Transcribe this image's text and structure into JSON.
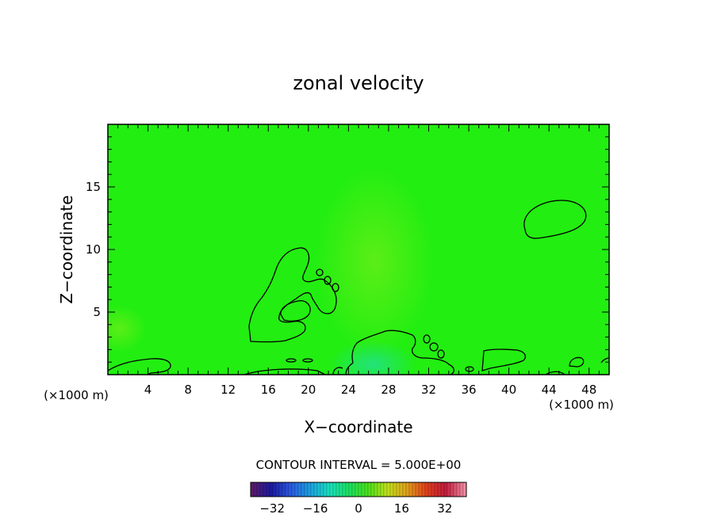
{
  "chart_data": {
    "type": "heatmap",
    "title": "zonal velocity",
    "xlabel": "X−coordinate",
    "ylabel": "Z−coordinate",
    "x_unit_left": "(×1000 m)",
    "x_unit_right": "(×1000 m)",
    "xlim": [
      0,
      50
    ],
    "ylim": [
      0,
      20
    ],
    "x_ticks": [
      4,
      8,
      12,
      16,
      20,
      24,
      28,
      32,
      36,
      40,
      44,
      48
    ],
    "y_ticks": [
      5,
      10,
      15
    ],
    "field_background_color": "#22ee11",
    "contour_line_color": "#000000",
    "contour_interval_label": "CONTOUR INTERVAL = 5.000E+00",
    "colorbar": {
      "range": [
        -40,
        40
      ],
      "ticks": [
        -32,
        -16,
        0,
        16,
        32
      ],
      "colors": [
        "#5a1a6a",
        "#1a1aa0",
        "#2a5ae0",
        "#1aa0e0",
        "#1ae0c0",
        "#1ae060",
        "#4ae01a",
        "#c0e01a",
        "#e0a01a",
        "#e0401a",
        "#c01a3a",
        "#f08aa0"
      ]
    }
  }
}
